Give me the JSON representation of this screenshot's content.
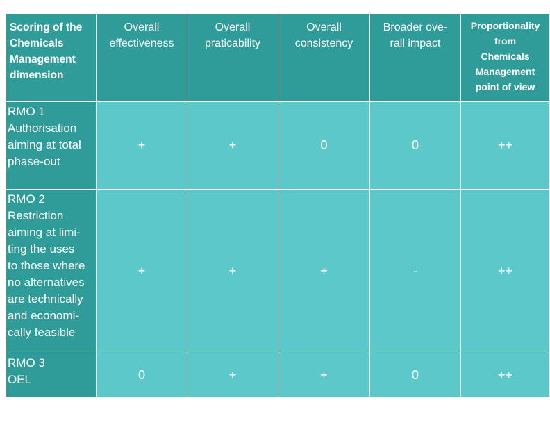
{
  "table": {
    "header": [
      {
        "lines": [
          "Scoring of the",
          "Chemicals",
          "Management",
          "dimension"
        ]
      },
      {
        "lines": [
          "Overall",
          "effectiveness"
        ]
      },
      {
        "lines": [
          "Overall",
          "praticability"
        ]
      },
      {
        "lines": [
          "Overall",
          "consistency"
        ]
      },
      {
        "lines": [
          "Broader ove-",
          "rall impact"
        ]
      },
      {
        "lines": [
          "Proportionality",
          "from",
          "Chemicals",
          "Management",
          "point of view"
        ]
      }
    ],
    "rows": [
      {
        "label": [
          "RMO 1",
          "Authorisation",
          "aiming at total",
          "phase-out"
        ],
        "values": [
          "+",
          "+",
          "0",
          "0",
          "++"
        ]
      },
      {
        "label": [
          "RMO 2",
          "Restriction",
          "aiming at limi-",
          "ting the uses",
          "to those where",
          "no alternatives",
          "are technically",
          "and economi-",
          "cally feasible"
        ],
        "values": [
          "+",
          "+",
          "+",
          "-",
          "++"
        ]
      },
      {
        "label": [
          "RMO 3",
          "OEL"
        ],
        "values": [
          "0",
          "+",
          "+",
          "0",
          "++"
        ]
      }
    ]
  }
}
